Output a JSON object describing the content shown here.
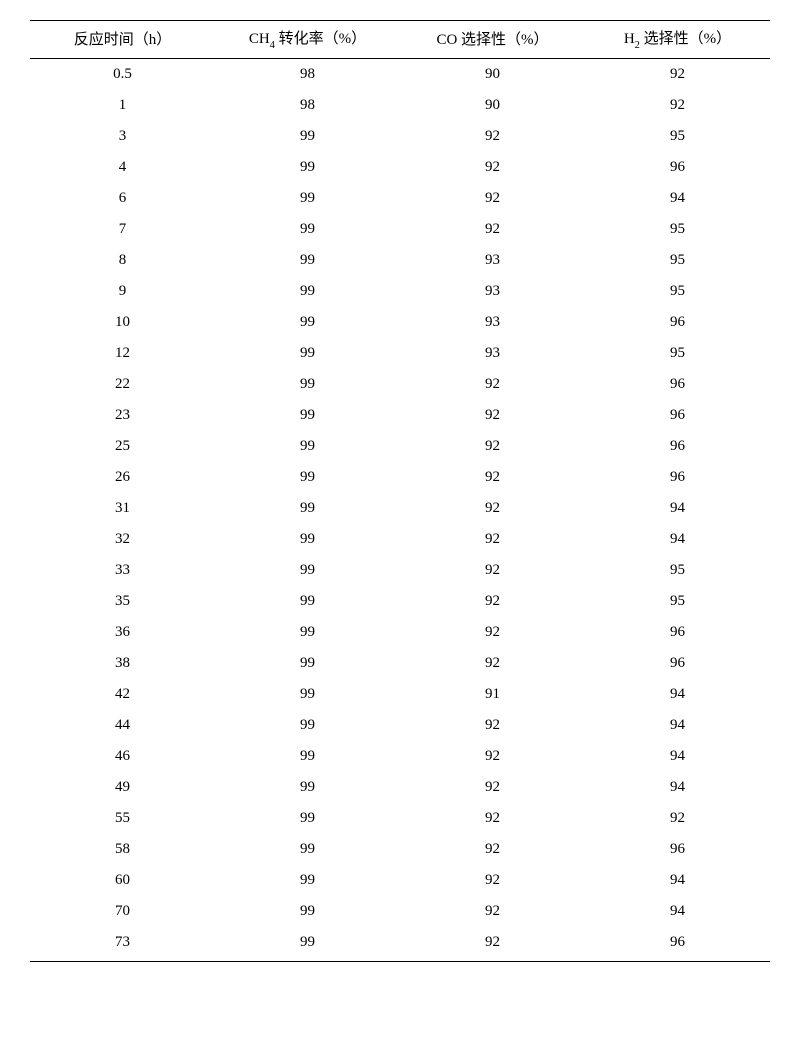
{
  "table": {
    "type": "table",
    "background_color": "#ffffff",
    "text_color": "#000000",
    "border_color": "#000000",
    "header_border_top_width": 1.5,
    "header_border_bottom_width": 1,
    "body_border_bottom_width": 1.5,
    "font_family": "SimSun / Times New Roman",
    "header_fontsize": 15,
    "cell_fontsize": 15,
    "column_widths_pct": [
      25,
      25,
      25,
      25
    ],
    "columns": [
      {
        "label_html": "反应时间（h）"
      },
      {
        "label_html": "CH<span class=\"sub\">4</span> 转化率（%）"
      },
      {
        "label_html": "CO 选择性（%）"
      },
      {
        "label_html": "H<span class=\"sub\">2</span> 选择性（%）"
      }
    ],
    "rows": [
      [
        "0.5",
        "98",
        "90",
        "92"
      ],
      [
        "1",
        "98",
        "90",
        "92"
      ],
      [
        "3",
        "99",
        "92",
        "95"
      ],
      [
        "4",
        "99",
        "92",
        "96"
      ],
      [
        "6",
        "99",
        "92",
        "94"
      ],
      [
        "7",
        "99",
        "92",
        "95"
      ],
      [
        "8",
        "99",
        "93",
        "95"
      ],
      [
        "9",
        "99",
        "93",
        "95"
      ],
      [
        "10",
        "99",
        "93",
        "96"
      ],
      [
        "12",
        "99",
        "93",
        "95"
      ],
      [
        "22",
        "99",
        "92",
        "96"
      ],
      [
        "23",
        "99",
        "92",
        "96"
      ],
      [
        "25",
        "99",
        "92",
        "96"
      ],
      [
        "26",
        "99",
        "92",
        "96"
      ],
      [
        "31",
        "99",
        "92",
        "94"
      ],
      [
        "32",
        "99",
        "92",
        "94"
      ],
      [
        "33",
        "99",
        "92",
        "95"
      ],
      [
        "35",
        "99",
        "92",
        "95"
      ],
      [
        "36",
        "99",
        "92",
        "96"
      ],
      [
        "38",
        "99",
        "92",
        "96"
      ],
      [
        "42",
        "99",
        "91",
        "94"
      ],
      [
        "44",
        "99",
        "92",
        "94"
      ],
      [
        "46",
        "99",
        "92",
        "94"
      ],
      [
        "49",
        "99",
        "92",
        "94"
      ],
      [
        "55",
        "99",
        "92",
        "92"
      ],
      [
        "58",
        "99",
        "92",
        "96"
      ],
      [
        "60",
        "99",
        "92",
        "94"
      ],
      [
        "70",
        "99",
        "92",
        "94"
      ],
      [
        "73",
        "99",
        "92",
        "96"
      ]
    ]
  }
}
